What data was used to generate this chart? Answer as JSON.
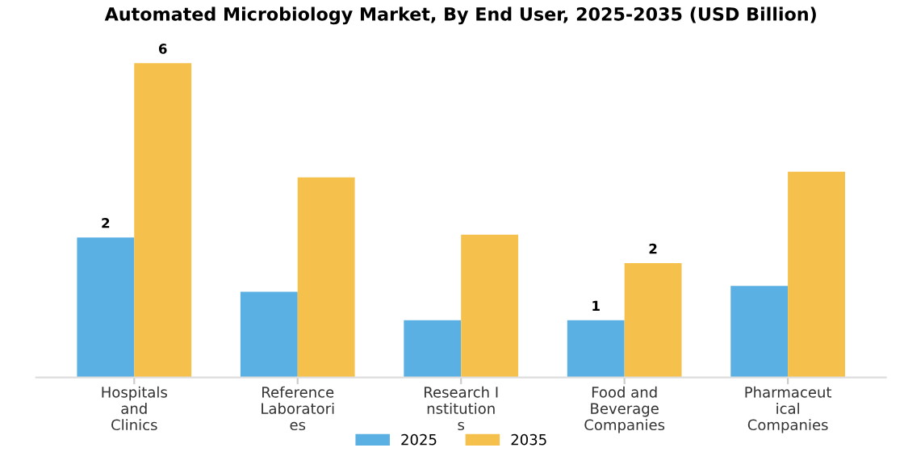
{
  "chart_data": {
    "type": "bar",
    "title": "Automated Microbiology Market, By End User, 2025-2035 (USD Billion)",
    "categories": [
      "Hospitals\nand\nClinics",
      "Reference\nLaboratori\nes",
      "Research I\nnstitution\ns",
      "Food and\nBeverage\nCompanies",
      "Pharmaceut\nical\nCompanies"
    ],
    "legend": "bottom",
    "grid": false,
    "series": [
      {
        "name": "2025",
        "color": "#5aafe3",
        "values": [
          2.45,
          1.5,
          1.0,
          1.0,
          1.6
        ],
        "value_labels": [
          "2",
          null,
          null,
          "1",
          null
        ]
      },
      {
        "name": "2035",
        "color": "#f5c04b",
        "values": [
          5.5,
          3.5,
          2.5,
          2.0,
          3.6
        ],
        "value_labels": [
          "6",
          null,
          null,
          "2",
          null
        ]
      }
    ]
  }
}
